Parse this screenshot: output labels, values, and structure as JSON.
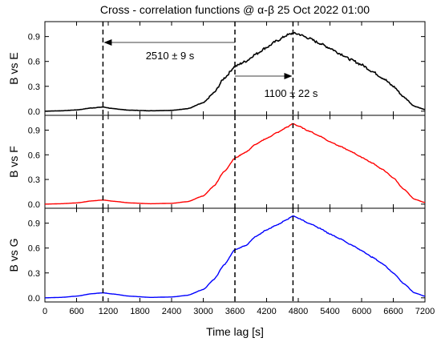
{
  "chart_data": {
    "type": "line",
    "title": "Cross - correlation functions @ α-β 25 Oct 2022 01:00",
    "xlabel": "Time lag [s]",
    "xlim": [
      0,
      7200
    ],
    "xticks": [
      0,
      600,
      1200,
      1800,
      2400,
      3000,
      3600,
      4200,
      4800,
      5400,
      6000,
      6600,
      7200
    ],
    "ylim": [
      -0.05,
      1.08
    ],
    "yticks": [
      0.0,
      0.3,
      0.6,
      0.9
    ],
    "ytick_labels": [
      "0.0",
      "0.3",
      "0.6",
      "0.9"
    ],
    "vlines": [
      1100,
      3600,
      4700
    ],
    "annotations": [
      {
        "text": "2510 ± 9 s",
        "arrow_from": 3600,
        "arrow_to": 1100
      },
      {
        "text": "1100 ± 22 s",
        "arrow_from": 3600,
        "arrow_to": 4700
      }
    ],
    "x": [
      0,
      300,
      600,
      900,
      1100,
      1300,
      1600,
      2000,
      2400,
      2700,
      3000,
      3200,
      3400,
      3600,
      3800,
      4000,
      4200,
      4400,
      4600,
      4700,
      4800,
      5000,
      5200,
      5400,
      5600,
      5800,
      6000,
      6200,
      6400,
      6600,
      6800,
      7000,
      7200
    ],
    "panels": [
      {
        "ylabel": "B vs E",
        "color": "#000000",
        "noisy": true,
        "values": [
          0.0,
          0.005,
          0.015,
          0.04,
          0.05,
          0.03,
          0.012,
          0.005,
          0.01,
          0.03,
          0.1,
          0.22,
          0.4,
          0.54,
          0.6,
          0.69,
          0.77,
          0.85,
          0.92,
          0.94,
          0.93,
          0.88,
          0.82,
          0.76,
          0.69,
          0.62,
          0.56,
          0.48,
          0.4,
          0.3,
          0.17,
          0.06,
          0.02
        ]
      },
      {
        "ylabel": "B vs F",
        "color": "#ff0000",
        "noisy": false,
        "values": [
          0.0,
          0.005,
          0.015,
          0.04,
          0.05,
          0.035,
          0.015,
          0.005,
          0.01,
          0.03,
          0.1,
          0.22,
          0.4,
          0.56,
          0.63,
          0.73,
          0.8,
          0.87,
          0.94,
          0.98,
          0.95,
          0.89,
          0.83,
          0.76,
          0.7,
          0.64,
          0.57,
          0.5,
          0.42,
          0.32,
          0.18,
          0.06,
          0.02
        ]
      },
      {
        "ylabel": "B vs G",
        "color": "#0000ff",
        "noisy": false,
        "values": [
          0.0,
          0.005,
          0.02,
          0.05,
          0.06,
          0.045,
          0.02,
          0.005,
          0.01,
          0.03,
          0.1,
          0.22,
          0.4,
          0.58,
          0.63,
          0.74,
          0.82,
          0.88,
          0.95,
          0.99,
          0.96,
          0.9,
          0.84,
          0.77,
          0.71,
          0.64,
          0.57,
          0.49,
          0.41,
          0.3,
          0.17,
          0.06,
          0.02
        ]
      }
    ]
  }
}
